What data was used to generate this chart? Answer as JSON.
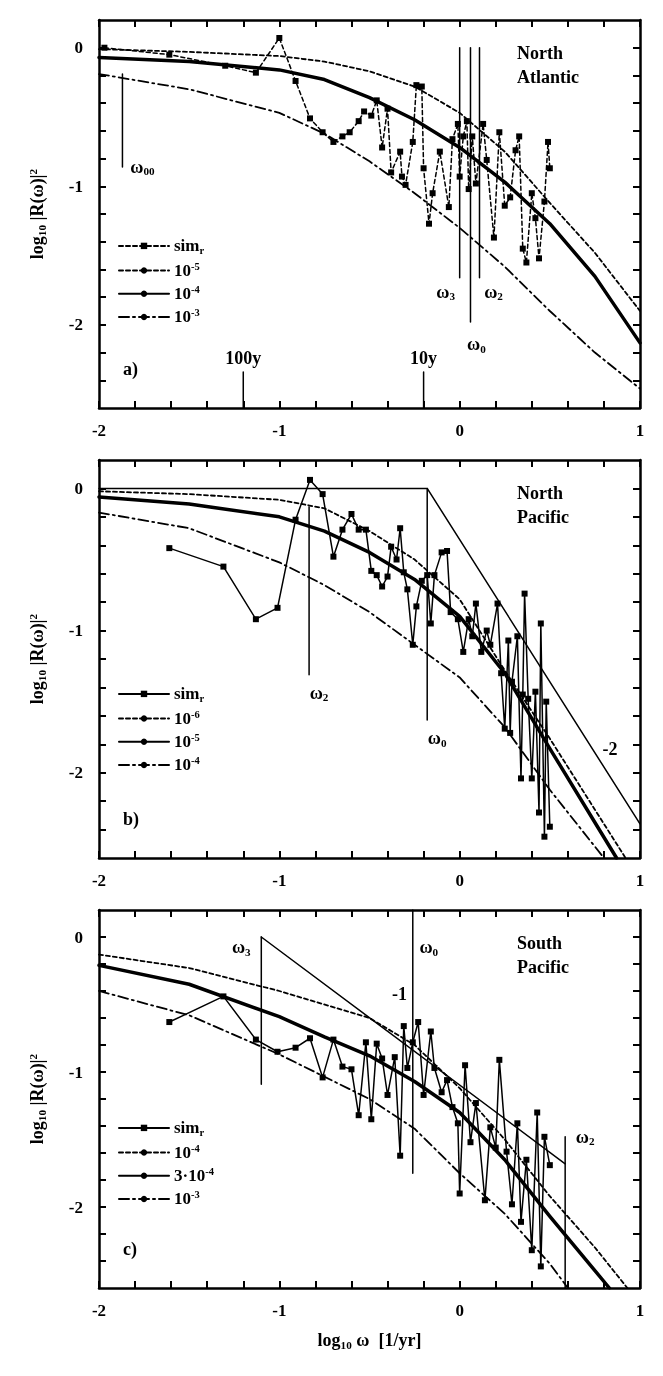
{
  "chart_data": [
    {
      "type": "line",
      "title": "North Atlantic",
      "ylabel": "log$_{10}$ |R(ω)|$^{2}$",
      "xlim": [
        -2,
        1
      ],
      "ylim": [
        -2.6,
        0.2
      ],
      "legend": "bottom left",
      "marker": "none",
      "xticks": [
        -2,
        {
          "value": -1.8,
          "label": null
        },
        {
          "value": -1.6,
          "label": null
        },
        {
          "value": -1.4,
          "label": null
        },
        {
          "value": -1.2,
          "label": null
        },
        -1,
        {
          "value": -0.8,
          "label": null
        },
        {
          "value": -0.6,
          "label": null
        },
        {
          "value": -0.4,
          "label": null
        },
        {
          "value": -0.2,
          "label": null
        },
        0,
        {
          "value": 0.2,
          "label": null
        },
        {
          "value": 0.4,
          "label": null
        },
        {
          "value": 0.6,
          "label": null
        },
        {
          "value": 0.8,
          "label": null
        },
        1
      ],
      "yticks": [
        {
          "value": -2.4,
          "label": null
        },
        {
          "value": -2.2,
          "label": null
        },
        -2,
        {
          "value": -1.8,
          "label": null
        },
        {
          "value": -1.6,
          "label": null
        },
        {
          "value": -1.4,
          "label": null
        },
        {
          "value": -1.2,
          "label": null
        },
        -1,
        {
          "value": -0.8,
          "label": null
        },
        {
          "value": -0.6,
          "label": null
        },
        {
          "value": -0.4,
          "label": null
        },
        {
          "value": -0.2,
          "label": null
        },
        0
      ],
      "annotations": [
        "a)",
        {
          "text": "ω$_{00}$",
          "x": -1.87,
          "y": -0.86
        },
        {
          "text": "ω$_{3}$",
          "x": 0.0,
          "y": -1.66
        },
        {
          "text": "ω$_{2}$",
          "x": 0.11,
          "y": -1.66
        },
        {
          "text": "ω$_{0}$",
          "x": 0.06,
          "y": -1.98
        },
        {
          "text": "100y",
          "x": -1.2,
          "y": -2.34
        },
        {
          "text": "10y",
          "x": -0.2,
          "y": -2.34
        }
      ],
      "series": [
        {
          "name": "sim$_{r}$",
          "color": "#000000",
          "marker": "square",
          "line_style": "dashed",
          "x": [
            -1.97,
            -1.61,
            -1.3,
            -1.13,
            -1.0,
            -0.91,
            -0.83,
            -0.76,
            -0.7,
            -0.65,
            -0.61,
            -0.56,
            -0.53,
            -0.49,
            -0.46,
            -0.43,
            -0.4,
            -0.38,
            -0.33,
            -0.32,
            -0.3,
            -0.26,
            -0.24,
            -0.21,
            -0.2,
            -0.17,
            -0.15,
            -0.11,
            -0.06,
            -0.04,
            -0.01,
            0.0,
            0.02,
            0.04,
            0.05,
            0.07,
            0.09,
            0.13,
            0.15,
            0.19,
            0.22,
            0.25,
            0.28,
            0.31,
            0.33,
            0.35,
            0.37,
            0.4,
            0.42,
            0.44,
            0.47,
            0.49,
            0.5
          ],
          "values": [
            0.0,
            -0.05,
            -0.13,
            -0.18,
            0.07,
            -0.24,
            -0.51,
            -0.61,
            -0.68,
            -0.64,
            -0.61,
            -0.53,
            -0.46,
            -0.49,
            -0.38,
            -0.72,
            -0.44,
            -0.9,
            -0.75,
            -0.93,
            -0.99,
            -0.68,
            -0.27,
            -0.28,
            -0.87,
            -1.27,
            -1.05,
            -0.75,
            -1.15,
            -0.66,
            -0.55,
            -0.93,
            -0.64,
            -0.53,
            -1.02,
            -0.64,
            -0.98,
            -0.55,
            -0.81,
            -1.37,
            -0.61,
            -1.14,
            -1.08,
            -0.74,
            -0.64,
            -1.45,
            -1.55,
            -1.05,
            -1.23,
            -1.52,
            -1.11,
            -0.68,
            -0.87
          ]
        },
        {
          "name": "10$^{-5}$",
          "color": "#000000",
          "line_style": "dashed",
          "x": [
            -2,
            -1.5,
            -1,
            -0.75,
            -0.5,
            -0.25,
            0,
            0.25,
            0.5,
            0.75,
            1
          ],
          "values": [
            -0.01,
            -0.03,
            -0.06,
            -0.1,
            -0.17,
            -0.28,
            -0.47,
            -0.75,
            -1.12,
            -1.48,
            -1.9
          ]
        },
        {
          "name": "10$^{-4}$",
          "color": "#000000",
          "line_style": "solid",
          "x": [
            -2,
            -1.5,
            -1,
            -0.75,
            -0.5,
            -0.25,
            0,
            0.25,
            0.5,
            0.75,
            1
          ],
          "values": [
            -0.07,
            -0.1,
            -0.16,
            -0.23,
            -0.36,
            -0.52,
            -0.72,
            -0.97,
            -1.27,
            -1.65,
            -2.13
          ]
        },
        {
          "name": "10$^{-3}$",
          "color": "#000000",
          "line_style": "dashdot",
          "x": [
            -2,
            -1.5,
            -1,
            -0.75,
            -0.5,
            -0.25,
            0,
            0.25,
            0.5,
            0.75,
            1
          ],
          "values": [
            -0.19,
            -0.3,
            -0.47,
            -0.62,
            -0.82,
            -1.05,
            -1.3,
            -1.58,
            -1.9,
            -2.2,
            -2.46
          ]
        },
        {
          "color": "#000000",
          "line_style": "solid",
          "x": [
            -1.87,
            -1.87
          ],
          "values": [
            -0.19,
            -0.86
          ]
        },
        {
          "color": "#000000",
          "line_style": "solid",
          "x": [
            0.0,
            0.0
          ],
          "values": [
            0.0,
            -1.66
          ]
        },
        {
          "color": "#000000",
          "line_style": "solid",
          "x": [
            0.06,
            0.06
          ],
          "values": [
            0.0,
            -1.98
          ]
        },
        {
          "color": "#000000",
          "line_style": "solid",
          "x": [
            0.11,
            0.11
          ],
          "values": [
            0.0,
            -1.66
          ]
        },
        {
          "color": "#000000",
          "line_style": "solid",
          "x": [
            -1.2,
            -1.2
          ],
          "values": [
            -2.6,
            -2.34
          ]
        },
        {
          "color": "#000000",
          "line_style": "solid",
          "x": [
            -0.2,
            -0.2
          ],
          "values": [
            -2.6,
            -2.34
          ]
        }
      ]
    },
    {
      "type": "line",
      "title": "North Pacific",
      "ylabel": "log$_{10}$ |R(ω)|$^{2}$",
      "xlim": [
        -2,
        1
      ],
      "ylim": [
        -2.6,
        0.2
      ],
      "legend": "bottom left",
      "marker": "none",
      "xticks": [
        -2,
        {
          "value": -1.8,
          "label": null
        },
        {
          "value": -1.6,
          "label": null
        },
        {
          "value": -1.4,
          "label": null
        },
        {
          "value": -1.2,
          "label": null
        },
        -1,
        {
          "value": -0.8,
          "label": null
        },
        {
          "value": -0.6,
          "label": null
        },
        {
          "value": -0.4,
          "label": null
        },
        {
          "value": -0.2,
          "label": null
        },
        0,
        {
          "value": 0.2,
          "label": null
        },
        {
          "value": 0.4,
          "label": null
        },
        {
          "value": 0.6,
          "label": null
        },
        {
          "value": 0.8,
          "label": null
        },
        1
      ],
      "yticks": [
        {
          "value": -2.4,
          "label": null
        },
        {
          "value": -2.2,
          "label": null
        },
        -2,
        {
          "value": -1.8,
          "label": null
        },
        {
          "value": -1.6,
          "label": null
        },
        {
          "value": -1.4,
          "label": null
        },
        {
          "value": -1.2,
          "label": null
        },
        -1,
        {
          "value": -0.8,
          "label": null
        },
        {
          "value": -0.6,
          "label": null
        },
        {
          "value": -0.4,
          "label": null
        },
        {
          "value": -0.2,
          "label": null
        },
        0
      ],
      "annotations": [
        "b)",
        {
          "text": "ω$_{2}$",
          "x": -0.835,
          "y": -1.31
        },
        {
          "text": "ω$_{0}$",
          "x": -0.18,
          "y": -1.63
        },
        {
          "text": "-2",
          "x": 0.7,
          "y": -1.76
        }
      ],
      "series": [
        {
          "name": "sim$_{r}$",
          "color": "#000000",
          "marker": "square",
          "line_style": "solid",
          "x": [
            -1.61,
            -1.31,
            -1.13,
            -1.01,
            -0.91,
            -0.83,
            -0.76,
            -0.7,
            -0.65,
            -0.6,
            -0.56,
            -0.52,
            -0.49,
            -0.46,
            -0.43,
            -0.4,
            -0.38,
            -0.35,
            -0.33,
            -0.31,
            -0.29,
            -0.26,
            -0.24,
            -0.21,
            -0.18,
            -0.16,
            -0.14,
            -0.1,
            -0.07,
            -0.05,
            -0.01,
            0.02,
            0.05,
            0.07,
            0.09,
            0.12,
            0.15,
            0.17,
            0.21,
            0.23,
            0.25,
            0.27,
            0.28,
            0.29,
            0.32,
            0.34,
            0.35,
            0.36,
            0.38,
            0.4,
            0.42,
            0.44,
            0.45,
            0.47,
            0.48,
            0.5
          ],
          "values": [
            -0.42,
            -0.55,
            -0.92,
            -0.84,
            -0.22,
            0.06,
            -0.04,
            -0.48,
            -0.29,
            -0.18,
            -0.29,
            -0.29,
            -0.58,
            -0.61,
            -0.69,
            -0.62,
            -0.41,
            -0.5,
            -0.28,
            -0.59,
            -0.71,
            -1.1,
            -0.83,
            -0.65,
            -0.61,
            -0.95,
            -0.61,
            -0.45,
            -0.44,
            -0.87,
            -0.92,
            -1.15,
            -0.92,
            -1.04,
            -0.81,
            -1.15,
            -1.0,
            -1.1,
            -0.81,
            -1.3,
            -1.69,
            -1.07,
            -1.72,
            -1.36,
            -1.04,
            -2.04,
            -1.45,
            -0.74,
            -1.48,
            -2.04,
            -1.43,
            -2.28,
            -0.95,
            -2.45,
            -1.5,
            -2.38
          ]
        },
        {
          "name": "10$^{-6}$",
          "color": "#000000",
          "line_style": "dashed",
          "x": [
            -2,
            -1.5,
            -1,
            -0.75,
            -0.5,
            -0.25,
            0,
            0.25,
            0.5,
            0.75,
            0.92
          ],
          "values": [
            -0.02,
            -0.04,
            -0.08,
            -0.14,
            -0.3,
            -0.5,
            -0.78,
            -1.28,
            -1.76,
            -2.26,
            -2.6
          ]
        },
        {
          "name": "10$^{-5}$",
          "color": "#000000",
          "line_style": "solid",
          "x": [
            -2,
            -1.5,
            -1,
            -0.75,
            -0.5,
            -0.25,
            0,
            0.25,
            0.5,
            0.75,
            0.87
          ],
          "values": [
            -0.06,
            -0.11,
            -0.2,
            -0.3,
            -0.45,
            -0.64,
            -0.9,
            -1.3,
            -1.83,
            -2.35,
            -2.6
          ]
        },
        {
          "name": "10$^{-4}$",
          "color": "#000000",
          "line_style": "dashdot",
          "x": [
            -2,
            -1.5,
            -1,
            -0.75,
            -0.5,
            -0.25,
            0,
            0.25,
            0.5,
            0.8
          ],
          "values": [
            -0.17,
            -0.28,
            -0.52,
            -0.68,
            -0.87,
            -1.1,
            -1.33,
            -1.68,
            -2.12,
            -2.6
          ]
        },
        {
          "color": "#000000",
          "line_style": "solid",
          "x": [
            -2,
            -0.18,
            1
          ],
          "values": [
            0,
            0,
            -2.36
          ]
        },
        {
          "color": "#000000",
          "line_style": "solid",
          "x": [
            -0.835,
            -0.835
          ],
          "values": [
            -0.13,
            -1.31
          ]
        },
        {
          "color": "#000000",
          "line_style": "solid",
          "x": [
            -0.18,
            -0.18
          ],
          "values": [
            0,
            -1.63
          ]
        }
      ]
    },
    {
      "type": "line",
      "title": "South Pacific",
      "xlabel": "log$_{10}$ ω  [1/yr]",
      "ylabel": "log$_{10}$ |R(ω)|$^{2}$",
      "xlim": [
        -2,
        1
      ],
      "ylim": [
        -2.6,
        0.2
      ],
      "legend": "bottom left",
      "marker": "none",
      "xticks": [
        -2,
        {
          "value": -1.8,
          "label": null
        },
        {
          "value": -1.6,
          "label": null
        },
        {
          "value": -1.4,
          "label": null
        },
        {
          "value": -1.2,
          "label": null
        },
        -1,
        {
          "value": -0.8,
          "label": null
        },
        {
          "value": -0.6,
          "label": null
        },
        {
          "value": -0.4,
          "label": null
        },
        {
          "value": -0.2,
          "label": null
        },
        0,
        {
          "value": 0.2,
          "label": null
        },
        {
          "value": 0.4,
          "label": null
        },
        {
          "value": 0.6,
          "label": null
        },
        {
          "value": 0.8,
          "label": null
        },
        1
      ],
      "yticks": [
        {
          "value": -2.4,
          "label": null
        },
        {
          "value": -2.2,
          "label": null
        },
        -2,
        {
          "value": -1.8,
          "label": null
        },
        {
          "value": -1.6,
          "label": null
        },
        {
          "value": -1.4,
          "label": null
        },
        {
          "value": -1.2,
          "label": null
        },
        -1,
        {
          "value": -0.8,
          "label": null
        },
        {
          "value": -0.6,
          "label": null
        },
        {
          "value": -0.4,
          "label": null
        },
        {
          "value": -0.2,
          "label": null
        },
        0
      ],
      "annotations": [
        "c)",
        {
          "text": "ω$_{3}$",
          "x": -1.1,
          "y": 0
        },
        {
          "text": "ω$_{0}$",
          "x": -0.26,
          "y": 0
        },
        {
          "text": "ω$_{2}$",
          "x": 0.585,
          "y": -1.48
        },
        {
          "text": "-1",
          "x": -0.5,
          "y": -0.6
        }
      ],
      "series": [
        {
          "name": "sim$_{r}$",
          "color": "#000000",
          "marker": "square",
          "line_style": "solid",
          "x": [
            -1.61,
            -1.31,
            -1.13,
            -1.01,
            -0.91,
            -0.83,
            -0.76,
            -0.7,
            -0.65,
            -0.6,
            -0.56,
            -0.52,
            -0.49,
            -0.46,
            -0.43,
            -0.4,
            -0.36,
            -0.33,
            -0.31,
            -0.29,
            -0.26,
            -0.23,
            -0.2,
            -0.16,
            -0.14,
            -0.1,
            -0.07,
            -0.04,
            -0.01,
            0.0,
            0.03,
            0.06,
            0.09,
            0.14,
            0.17,
            0.2,
            0.22,
            0.26,
            0.29,
            0.32,
            0.34,
            0.37,
            0.4,
            0.43,
            0.45,
            0.47,
            0.5
          ],
          "values": [
            -0.63,
            -0.44,
            -0.76,
            -0.85,
            -0.82,
            -0.75,
            -1.04,
            -0.76,
            -0.96,
            -0.98,
            -1.32,
            -0.78,
            -1.35,
            -0.79,
            -0.9,
            -1.17,
            -0.89,
            -1.62,
            -0.66,
            -0.97,
            -0.78,
            -0.63,
            -1.17,
            -0.7,
            -0.97,
            -1.15,
            -1.06,
            -1.26,
            -1.38,
            -1.9,
            -0.95,
            -1.52,
            -1.23,
            -1.95,
            -1.41,
            -1.56,
            -0.91,
            -1.59,
            -1.98,
            -1.38,
            -2.11,
            -1.65,
            -2.32,
            -1.3,
            -2.44,
            -1.48,
            -1.69
          ]
        },
        {
          "name": "10$^{-4}$",
          "color": "#000000",
          "line_style": "dashed",
          "x": [
            -2,
            -1.5,
            -1,
            -0.5,
            -0.25,
            0,
            0.25,
            0.5,
            0.75,
            0.93
          ],
          "values": [
            -0.13,
            -0.23,
            -0.4,
            -0.6,
            -0.8,
            -1.12,
            -1.5,
            -1.92,
            -2.3,
            -2.6
          ]
        },
        {
          "name": "3·10$^{-4}$",
          "color": "#000000",
          "line_style": "solid",
          "x": [
            -2,
            -1.5,
            -1,
            -0.75,
            -0.5,
            -0.25,
            0,
            0.25,
            0.5,
            0.83
          ],
          "values": [
            -0.21,
            -0.35,
            -0.59,
            -0.74,
            -0.88,
            -1.07,
            -1.3,
            -1.65,
            -2.07,
            -2.6
          ]
        },
        {
          "name": "10$^{-3}$",
          "color": "#000000",
          "line_style": "dashdot",
          "x": [
            -2,
            -1.5,
            -1,
            -0.5,
            -0.25,
            0,
            0.25,
            0.5,
            0.6
          ],
          "values": [
            -0.4,
            -0.58,
            -0.87,
            -1.2,
            -1.42,
            -1.75,
            -2.05,
            -2.42,
            -2.6
          ]
        },
        {
          "color": "#000000",
          "line_style": "solid",
          "x": [
            -1.1,
            0.585
          ],
          "values": [
            0,
            -1.68
          ]
        },
        {
          "color": "#000000",
          "line_style": "solid",
          "x": [
            -1.1,
            -1.1
          ],
          "values": [
            0,
            -1.09
          ]
        },
        {
          "color": "#000000",
          "line_style": "solid",
          "x": [
            -0.26,
            -0.26
          ],
          "values": [
            0.2,
            -1.75
          ]
        },
        {
          "color": "#000000",
          "line_style": "solid",
          "x": [
            0.585,
            0.585
          ],
          "values": [
            -1.48,
            -2.6
          ]
        }
      ]
    }
  ]
}
